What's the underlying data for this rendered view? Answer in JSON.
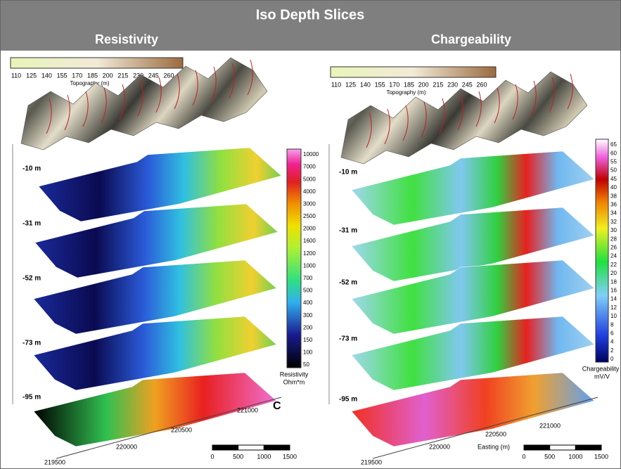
{
  "header": {
    "title": "Iso Depth Slices"
  },
  "panels": [
    {
      "title": "Resistivity",
      "topography": {
        "ticks": [
          110,
          125,
          140,
          155,
          170,
          185,
          200,
          215,
          230,
          245,
          260
        ],
        "label": "Topography (m)"
      },
      "depths": [
        "-10 m",
        "-31 m",
        "-52 m",
        "-73 m",
        "-95 m"
      ],
      "colorbar": {
        "ticks": [
          10000,
          7000,
          5000,
          4000,
          3000,
          2500,
          2000,
          1600,
          1200,
          1000,
          700,
          500,
          400,
          300,
          200,
          150,
          100,
          50
        ],
        "title": "Resistivity",
        "unit": "Ohm*m"
      },
      "easting": {
        "ticks": [
          219500,
          220000,
          220500,
          221000
        ]
      },
      "scale": [
        0,
        500,
        1000,
        1500
      ],
      "annotation": "C"
    },
    {
      "title": "Chargeability",
      "topography": {
        "ticks": [
          110,
          125,
          140,
          155,
          170,
          185,
          200,
          215,
          230,
          245,
          260
        ],
        "label": "Topography (m)"
      },
      "depths": [
        "-10 m",
        "-31 m",
        "-52 m",
        "-73 m",
        "-95 m"
      ],
      "colorbar": {
        "ticks": [
          65,
          60,
          55,
          50,
          45,
          40,
          38,
          36,
          34,
          32,
          30,
          28,
          26,
          24,
          22,
          20,
          18,
          16,
          14,
          12,
          10,
          8,
          6,
          4,
          2,
          0
        ],
        "title": "Chargeability",
        "unit": "mV/V"
      },
      "easting": {
        "ticks": [
          219500,
          220000,
          220500,
          221000
        ],
        "label": "Easting (m)"
      },
      "scale": [
        0,
        500,
        1000,
        1500
      ]
    }
  ]
}
